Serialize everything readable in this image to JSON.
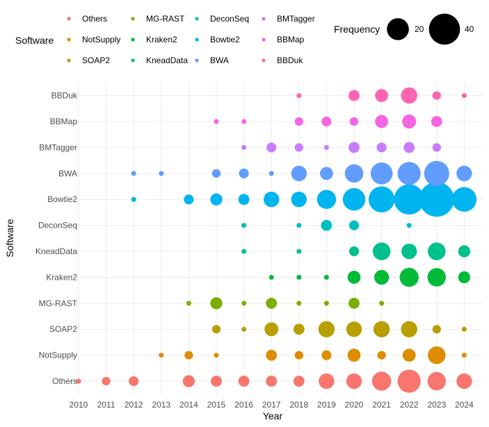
{
  "chart_data": {
    "type": "scatter",
    "xlabel": "Year",
    "ylabel": "Software",
    "x_categories": [
      "2010",
      "2011",
      "2012",
      "2013",
      "2014",
      "2015",
      "2016",
      "2017",
      "2018",
      "2019",
      "2020",
      "2021",
      "2022",
      "2023",
      "2024"
    ],
    "y_categories": [
      "Others",
      "NotSupply",
      "SOAP2",
      "MG-RAST",
      "Kraken2",
      "KneadData",
      "DeconSeq",
      "Bowtie2",
      "BWA",
      "BMTagger",
      "BBMap",
      "BBDuk"
    ],
    "size_legend": {
      "title": "Frequency",
      "values": [
        20,
        40
      ]
    },
    "color_legend": {
      "title": "Software",
      "entries": [
        {
          "name": "Others",
          "color": "#F8766D"
        },
        {
          "name": "NotSupply",
          "color": "#DE8C00"
        },
        {
          "name": "SOAP2",
          "color": "#B79F00"
        },
        {
          "name": "MG-RAST",
          "color": "#7CAE00"
        },
        {
          "name": "Kraken2",
          "color": "#00BA38"
        },
        {
          "name": "KneadData",
          "color": "#00C08B"
        },
        {
          "name": "DeconSeq",
          "color": "#00BFC4"
        },
        {
          "name": "Bowtie2",
          "color": "#00B4F0"
        },
        {
          "name": "BWA",
          "color": "#619CFF"
        },
        {
          "name": "BMTagger",
          "color": "#C77CFF"
        },
        {
          "name": "BBMap",
          "color": "#F564E3"
        },
        {
          "name": "BBDuk",
          "color": "#FF64B0"
        }
      ]
    },
    "series": [
      {
        "name": "Others",
        "points": [
          [
            2010,
            1
          ],
          [
            2011,
            3
          ],
          [
            2012,
            4
          ],
          [
            2014,
            6
          ],
          [
            2015,
            5
          ],
          [
            2016,
            5
          ],
          [
            2017,
            5
          ],
          [
            2018,
            5
          ],
          [
            2019,
            10
          ],
          [
            2020,
            10
          ],
          [
            2021,
            15
          ],
          [
            2022,
            22
          ],
          [
            2023,
            14
          ],
          [
            2024,
            10
          ]
        ]
      },
      {
        "name": "NotSupply",
        "points": [
          [
            2013,
            1
          ],
          [
            2014,
            3
          ],
          [
            2015,
            1
          ],
          [
            2017,
            5
          ],
          [
            2018,
            3
          ],
          [
            2019,
            4
          ],
          [
            2020,
            7
          ],
          [
            2021,
            3
          ],
          [
            2022,
            7
          ],
          [
            2023,
            13
          ],
          [
            2024,
            1
          ]
        ]
      },
      {
        "name": "SOAP2",
        "points": [
          [
            2015,
            3
          ],
          [
            2016,
            1
          ],
          [
            2017,
            8
          ],
          [
            2018,
            5
          ],
          [
            2019,
            11
          ],
          [
            2020,
            10
          ],
          [
            2021,
            11
          ],
          [
            2022,
            11
          ],
          [
            2023,
            3
          ],
          [
            2024,
            1
          ]
        ]
      },
      {
        "name": "MG-RAST",
        "points": [
          [
            2014,
            1
          ],
          [
            2015,
            6
          ],
          [
            2016,
            1
          ],
          [
            2017,
            5
          ],
          [
            2018,
            1
          ],
          [
            2019,
            1
          ],
          [
            2020,
            5
          ],
          [
            2021,
            1
          ]
        ]
      },
      {
        "name": "Kraken2",
        "points": [
          [
            2017,
            1
          ],
          [
            2018,
            1
          ],
          [
            2019,
            1
          ],
          [
            2020,
            7
          ],
          [
            2021,
            9
          ],
          [
            2022,
            15
          ],
          [
            2023,
            14
          ],
          [
            2024,
            6
          ]
        ]
      },
      {
        "name": "KneadData",
        "points": [
          [
            2016,
            1
          ],
          [
            2018,
            1
          ],
          [
            2020,
            4
          ],
          [
            2021,
            13
          ],
          [
            2022,
            10
          ],
          [
            2023,
            13
          ],
          [
            2024,
            6
          ]
        ]
      },
      {
        "name": "DeconSeq",
        "points": [
          [
            2016,
            1
          ],
          [
            2018,
            1
          ],
          [
            2019,
            5
          ],
          [
            2020,
            4
          ],
          [
            2022,
            1
          ]
        ]
      },
      {
        "name": "Bowtie2",
        "points": [
          [
            2012,
            1
          ],
          [
            2014,
            4
          ],
          [
            2015,
            6
          ],
          [
            2016,
            5
          ],
          [
            2017,
            10
          ],
          [
            2018,
            10
          ],
          [
            2019,
            15
          ],
          [
            2020,
            21
          ],
          [
            2021,
            28
          ],
          [
            2022,
            38
          ],
          [
            2023,
            50
          ],
          [
            2024,
            25
          ]
        ]
      },
      {
        "name": "BWA",
        "points": [
          [
            2012,
            1
          ],
          [
            2013,
            1
          ],
          [
            2015,
            3
          ],
          [
            2016,
            4
          ],
          [
            2017,
            1
          ],
          [
            2018,
            10
          ],
          [
            2019,
            7
          ],
          [
            2020,
            14
          ],
          [
            2021,
            20
          ],
          [
            2022,
            22
          ],
          [
            2023,
            26
          ],
          [
            2024,
            10
          ]
        ]
      },
      {
        "name": "BMTagger",
        "points": [
          [
            2016,
            1
          ],
          [
            2017,
            4
          ],
          [
            2018,
            3
          ],
          [
            2019,
            1
          ],
          [
            2020,
            5
          ],
          [
            2021,
            4
          ],
          [
            2022,
            5
          ],
          [
            2023,
            3
          ]
        ]
      },
      {
        "name": "BBMap",
        "points": [
          [
            2015,
            1
          ],
          [
            2016,
            1
          ],
          [
            2018,
            3
          ],
          [
            2019,
            4
          ],
          [
            2020,
            3
          ],
          [
            2021,
            7
          ],
          [
            2022,
            8
          ],
          [
            2023,
            5
          ]
        ]
      },
      {
        "name": "BBDuk",
        "points": [
          [
            2018,
            1
          ],
          [
            2020,
            5
          ],
          [
            2021,
            7
          ],
          [
            2022,
            11
          ],
          [
            2023,
            3
          ],
          [
            2024,
            1
          ]
        ]
      }
    ]
  }
}
